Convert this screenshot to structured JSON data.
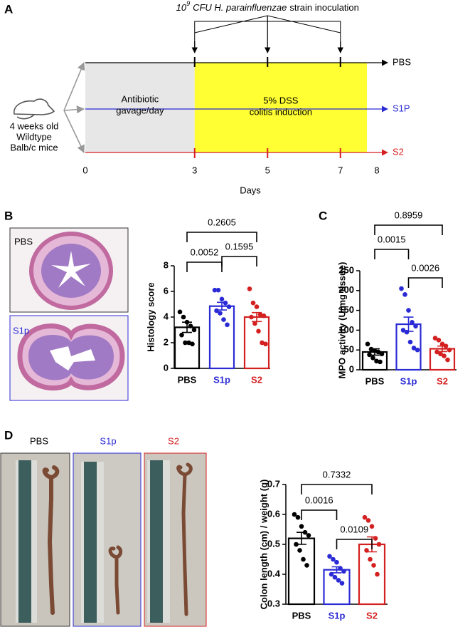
{
  "panels": {
    "a": "A",
    "b": "B",
    "c": "C",
    "d": "D"
  },
  "timeline": {
    "title_base": "10",
    "title_exp": "9",
    "title_italic": "CFU H. parainfluenzae",
    "title_rest": "strain inoculation",
    "mouse": [
      "4 weeks old",
      "Wildtype",
      "Balb/c mice"
    ],
    "phases": [
      [
        "Antibiotic",
        "gavage/day"
      ],
      [
        "5% DSS",
        "colitis induction"
      ]
    ],
    "groups": [
      {
        "name": "PBS",
        "color": "#000000"
      },
      {
        "name": "S1P",
        "color": "#2b2bd6"
      },
      {
        "name": "S2",
        "color": "#d42020"
      }
    ],
    "days": {
      "ticks": [
        0,
        3,
        5,
        7,
        8
      ],
      "xlim": [
        0,
        8
      ],
      "label": "Days"
    }
  },
  "images": {
    "histology": [
      {
        "name": "PBS",
        "color": "#000000"
      },
      {
        "name": "S1p",
        "color": "#2b2bd6"
      }
    ],
    "colon": [
      {
        "name": "PBS",
        "color": "#000000"
      },
      {
        "name": "S1p",
        "color": "#2b2bd6"
      },
      {
        "name": "S2",
        "color": "#d42020"
      }
    ]
  },
  "chart_data": [
    {
      "type": "bar",
      "y_label": "Histology score",
      "categories": [
        "PBS",
        "S1p",
        "S2"
      ],
      "colors": [
        "#000000",
        "#2b2bd6",
        "#d42020"
      ],
      "values": [
        3.2,
        4.85,
        4.0
      ],
      "errors": [
        0.4,
        0.3,
        0.35
      ],
      "points": [
        [
          4.4,
          4.0,
          3.6,
          3.3,
          3.0,
          2.6,
          2.0,
          2.0,
          1.9
        ],
        [
          6.1,
          6.1,
          5.4,
          5.1,
          4.8,
          4.5,
          4.3,
          3.8,
          3.4
        ],
        [
          6.2,
          5.1,
          4.8,
          4.2,
          4.1,
          4.0,
          3.5,
          2.9,
          2.0,
          1.9
        ]
      ],
      "ylim": [
        0,
        8
      ],
      "yticks": [
        0,
        2,
        4,
        6,
        8
      ],
      "comparisons": [
        {
          "groups": [
            "PBS",
            "S1p"
          ],
          "p": 0.0052
        },
        {
          "groups": [
            "S1p",
            "S2"
          ],
          "p": 0.1595
        },
        {
          "groups": [
            "PBS",
            "S2"
          ],
          "p": 0.2605
        }
      ]
    },
    {
      "type": "bar",
      "y_label": "MPO activity (U/mg tissue)",
      "categories": [
        "PBS",
        "S1p",
        "S2"
      ],
      "colors": [
        "#000000",
        "#2b2bd6",
        "#d42020"
      ],
      "values": [
        45,
        115,
        53
      ],
      "errors": [
        8,
        18,
        7
      ],
      "points": [
        [
          65,
          52,
          48,
          45,
          40,
          38,
          30,
          22,
          20
        ],
        [
          205,
          190,
          150,
          120,
          110,
          100,
          95,
          70,
          55,
          50
        ],
        [
          80,
          75,
          65,
          60,
          50,
          45,
          40,
          35,
          25
        ]
      ],
      "ylim": [
        0,
        250
      ],
      "yticks": [
        0,
        50,
        100,
        150,
        200,
        250
      ],
      "comparisons": [
        {
          "groups": [
            "PBS",
            "S1p"
          ],
          "p": 0.0015
        },
        {
          "groups": [
            "S1p",
            "S2"
          ],
          "p": 0.0026
        },
        {
          "groups": [
            "PBS",
            "S2"
          ],
          "p": 0.8959
        }
      ]
    },
    {
      "type": "bar",
      "y_label": "Colon length (cm) / weight (g)",
      "categories": [
        "PBS",
        "S1p",
        "S2"
      ],
      "colors": [
        "#000000",
        "#2b2bd6",
        "#d42020"
      ],
      "values": [
        0.52,
        0.415,
        0.5
      ],
      "errors": [
        0.02,
        0.01,
        0.025
      ],
      "points": [
        [
          0.6,
          0.59,
          0.56,
          0.54,
          0.53,
          0.5,
          0.48,
          0.45,
          0.43
        ],
        [
          0.46,
          0.45,
          0.44,
          0.42,
          0.41,
          0.4,
          0.39,
          0.38,
          0.37
        ],
        [
          0.59,
          0.58,
          0.56,
          0.52,
          0.5,
          0.48,
          0.45,
          0.43,
          0.4
        ]
      ],
      "ylim": [
        0.3,
        0.7
      ],
      "yticks": [
        0.3,
        0.4,
        0.5,
        0.6,
        0.7
      ],
      "comparisons": [
        {
          "groups": [
            "PBS",
            "S1p"
          ],
          "p": 0.0016
        },
        {
          "groups": [
            "S1p",
            "S2"
          ],
          "p": 0.0109
        },
        {
          "groups": [
            "PBS",
            "S2"
          ],
          "p": 0.7332
        }
      ]
    }
  ]
}
